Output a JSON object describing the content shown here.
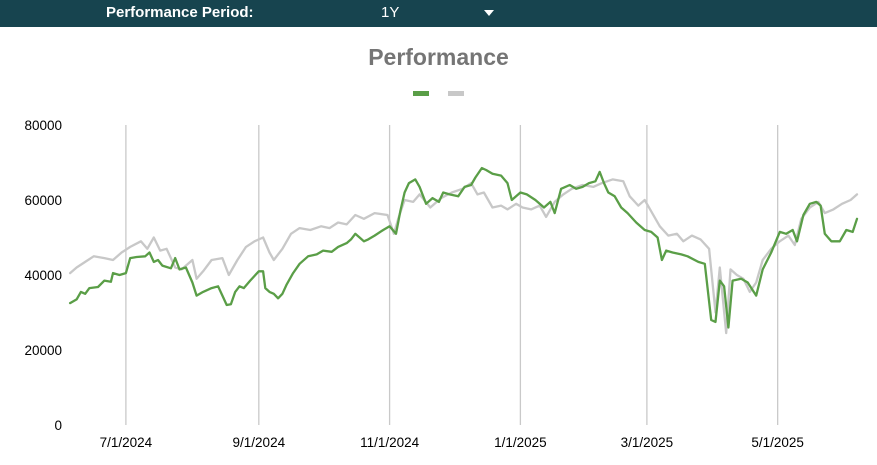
{
  "header": {
    "period_label": "Performance Period:",
    "period_value": "1Y",
    "dropdown_icon": "chevron-down-icon"
  },
  "colors": {
    "header_bg": "#17444f",
    "series_primary": "#5a9e47",
    "series_benchmark": "#c8c8c8",
    "gridline": "#c9c9c9",
    "title": "#757575"
  },
  "chart_data": {
    "type": "line",
    "title": "Performance",
    "xlabel": "",
    "ylabel": "",
    "ylim": [
      0,
      80000
    ],
    "yticks": [
      "0",
      "20000",
      "40000",
      "60000",
      "80000"
    ],
    "xlim": [
      "2024-06-04",
      "2025-06-07"
    ],
    "xticks": [
      "7/1/2024",
      "9/1/2024",
      "11/1/2024",
      "1/1/2025",
      "3/1/2025",
      "5/1/2025"
    ],
    "xtick_dates": [
      "2024-07-01",
      "2024-09-01",
      "2024-11-01",
      "2025-01-01",
      "2025-03-01",
      "2025-05-01"
    ],
    "grid": "vertical",
    "legend": "top-center",
    "series": [
      {
        "color": "#5a9e47",
        "points": [
          [
            "2024-06-05",
            32500
          ],
          [
            "2024-06-08",
            33500
          ],
          [
            "2024-06-10",
            35500
          ],
          [
            "2024-06-12",
            35000
          ],
          [
            "2024-06-14",
            36500
          ],
          [
            "2024-06-18",
            36800
          ],
          [
            "2024-06-21",
            38500
          ],
          [
            "2024-06-24",
            38200
          ],
          [
            "2024-06-25",
            40500
          ],
          [
            "2024-06-28",
            40000
          ],
          [
            "2024-07-01",
            40500
          ],
          [
            "2024-07-03",
            44500
          ],
          [
            "2024-07-06",
            44800
          ],
          [
            "2024-07-10",
            45000
          ],
          [
            "2024-07-12",
            46000
          ],
          [
            "2024-07-14",
            43500
          ],
          [
            "2024-07-16",
            44000
          ],
          [
            "2024-07-18",
            42500
          ],
          [
            "2024-07-22",
            41800
          ],
          [
            "2024-07-24",
            44500
          ],
          [
            "2024-07-26",
            41500
          ],
          [
            "2024-07-29",
            42000
          ],
          [
            "2024-08-01",
            38000
          ],
          [
            "2024-08-03",
            34500
          ],
          [
            "2024-08-06",
            35500
          ],
          [
            "2024-08-10",
            36500
          ],
          [
            "2024-08-13",
            37000
          ],
          [
            "2024-08-15",
            34500
          ],
          [
            "2024-08-17",
            32000
          ],
          [
            "2024-08-19",
            32200
          ],
          [
            "2024-08-21",
            35500
          ],
          [
            "2024-08-23",
            37000
          ],
          [
            "2024-08-25",
            36500
          ],
          [
            "2024-08-28",
            38500
          ],
          [
            "2024-09-01",
            41000
          ],
          [
            "2024-09-03",
            41000
          ],
          [
            "2024-09-04",
            36500
          ],
          [
            "2024-09-06",
            35500
          ],
          [
            "2024-09-08",
            35000
          ],
          [
            "2024-09-10",
            33800
          ],
          [
            "2024-09-12",
            35000
          ],
          [
            "2024-09-14",
            37500
          ],
          [
            "2024-09-17",
            40500
          ],
          [
            "2024-09-20",
            43000
          ],
          [
            "2024-09-24",
            45000
          ],
          [
            "2024-09-28",
            45500
          ],
          [
            "2024-10-01",
            46500
          ],
          [
            "2024-10-05",
            46200
          ],
          [
            "2024-10-08",
            47500
          ],
          [
            "2024-10-12",
            48500
          ],
          [
            "2024-10-14",
            49500
          ],
          [
            "2024-10-16",
            51000
          ],
          [
            "2024-10-18",
            50000
          ],
          [
            "2024-10-20",
            49000
          ],
          [
            "2024-10-22",
            49500
          ],
          [
            "2024-10-25",
            50500
          ],
          [
            "2024-10-29",
            52000
          ],
          [
            "2024-11-01",
            53000
          ],
          [
            "2024-11-04",
            51000
          ],
          [
            "2024-11-06",
            57000
          ],
          [
            "2024-11-08",
            62000
          ],
          [
            "2024-11-10",
            64500
          ],
          [
            "2024-11-13",
            65500
          ],
          [
            "2024-11-15",
            63500
          ],
          [
            "2024-11-18",
            59000
          ],
          [
            "2024-11-21",
            60500
          ],
          [
            "2024-11-24",
            59500
          ],
          [
            "2024-11-26",
            62000
          ],
          [
            "2024-11-29",
            61500
          ],
          [
            "2024-12-03",
            61000
          ],
          [
            "2024-12-06",
            63500
          ],
          [
            "2024-12-09",
            64000
          ],
          [
            "2024-12-11",
            66000
          ],
          [
            "2024-12-14",
            68500
          ],
          [
            "2024-12-16",
            68000
          ],
          [
            "2024-12-19",
            67000
          ],
          [
            "2024-12-23",
            66500
          ],
          [
            "2024-12-26",
            64500
          ],
          [
            "2024-12-28",
            60000
          ],
          [
            "2025-01-01",
            62000
          ],
          [
            "2025-01-04",
            61500
          ],
          [
            "2025-01-08",
            60000
          ],
          [
            "2025-01-12",
            58000
          ],
          [
            "2025-01-15",
            59500
          ],
          [
            "2025-01-17",
            56500
          ],
          [
            "2025-01-20",
            63000
          ],
          [
            "2025-01-24",
            64000
          ],
          [
            "2025-01-27",
            63000
          ],
          [
            "2025-01-30",
            63500
          ],
          [
            "2025-02-02",
            64500
          ],
          [
            "2025-02-05",
            65000
          ],
          [
            "2025-02-07",
            67500
          ],
          [
            "2025-02-09",
            64500
          ],
          [
            "2025-02-11",
            62000
          ],
          [
            "2025-02-14",
            61000
          ],
          [
            "2025-02-17",
            58000
          ],
          [
            "2025-02-20",
            56500
          ],
          [
            "2025-02-24",
            54000
          ],
          [
            "2025-02-28",
            52000
          ],
          [
            "2025-03-03",
            51500
          ],
          [
            "2025-03-06",
            50000
          ],
          [
            "2025-03-08",
            44000
          ],
          [
            "2025-03-10",
            46500
          ],
          [
            "2025-03-13",
            46000
          ],
          [
            "2025-03-17",
            45500
          ],
          [
            "2025-03-20",
            45000
          ],
          [
            "2025-03-25",
            43500
          ],
          [
            "2025-03-28",
            43000
          ],
          [
            "2025-03-31",
            28000
          ],
          [
            "2025-04-02",
            27500
          ],
          [
            "2025-04-04",
            38500
          ],
          [
            "2025-04-06",
            37000
          ],
          [
            "2025-04-08",
            26000
          ],
          [
            "2025-04-10",
            38500
          ],
          [
            "2025-04-14",
            39000
          ],
          [
            "2025-04-17",
            38000
          ],
          [
            "2025-04-21",
            34500
          ],
          [
            "2025-04-24",
            41500
          ],
          [
            "2025-04-28",
            46000
          ],
          [
            "2025-05-02",
            51500
          ],
          [
            "2025-05-05",
            51000
          ],
          [
            "2025-05-08",
            52000
          ],
          [
            "2025-05-10",
            49000
          ],
          [
            "2025-05-13",
            56000
          ],
          [
            "2025-05-16",
            59000
          ],
          [
            "2025-05-19",
            59500
          ],
          [
            "2025-05-21",
            58500
          ],
          [
            "2025-05-23",
            51000
          ],
          [
            "2025-05-26",
            49000
          ],
          [
            "2025-05-30",
            49000
          ],
          [
            "2025-06-02",
            52000
          ],
          [
            "2025-06-05",
            51500
          ],
          [
            "2025-06-07",
            55000
          ]
        ]
      },
      {
        "color": "#c8c8c8",
        "points": [
          [
            "2024-06-05",
            40500
          ],
          [
            "2024-06-08",
            42000
          ],
          [
            "2024-06-12",
            43500
          ],
          [
            "2024-06-16",
            45000
          ],
          [
            "2024-06-21",
            44500
          ],
          [
            "2024-06-25",
            44000
          ],
          [
            "2024-06-29",
            46000
          ],
          [
            "2024-07-03",
            47500
          ],
          [
            "2024-07-08",
            49000
          ],
          [
            "2024-07-11",
            47000
          ],
          [
            "2024-07-14",
            50000
          ],
          [
            "2024-07-17",
            46500
          ],
          [
            "2024-07-20",
            47000
          ],
          [
            "2024-07-24",
            42000
          ],
          [
            "2024-07-27",
            41500
          ],
          [
            "2024-08-01",
            44000
          ],
          [
            "2024-08-03",
            39000
          ],
          [
            "2024-08-06",
            41000
          ],
          [
            "2024-08-10",
            44000
          ],
          [
            "2024-08-15",
            44500
          ],
          [
            "2024-08-18",
            40000
          ],
          [
            "2024-08-22",
            44000
          ],
          [
            "2024-08-26",
            47500
          ],
          [
            "2024-08-30",
            49000
          ],
          [
            "2024-09-03",
            50000
          ],
          [
            "2024-09-06",
            46000
          ],
          [
            "2024-09-08",
            44000
          ],
          [
            "2024-09-12",
            47000
          ],
          [
            "2024-09-16",
            51000
          ],
          [
            "2024-09-20",
            52500
          ],
          [
            "2024-09-25",
            52000
          ],
          [
            "2024-09-30",
            53000
          ],
          [
            "2024-10-04",
            52500
          ],
          [
            "2024-10-08",
            54000
          ],
          [
            "2024-10-12",
            53500
          ],
          [
            "2024-10-16",
            56000
          ],
          [
            "2024-10-20",
            55000
          ],
          [
            "2024-10-25",
            56500
          ],
          [
            "2024-10-31",
            56000
          ],
          [
            "2024-11-03",
            51000
          ],
          [
            "2024-11-05",
            55000
          ],
          [
            "2024-11-08",
            60000
          ],
          [
            "2024-11-12",
            59500
          ],
          [
            "2024-11-15",
            61500
          ],
          [
            "2024-11-20",
            58000
          ],
          [
            "2024-11-25",
            60500
          ],
          [
            "2024-11-30",
            62000
          ],
          [
            "2024-12-05",
            63000
          ],
          [
            "2024-12-09",
            64500
          ],
          [
            "2024-12-12",
            61500
          ],
          [
            "2024-12-15",
            62000
          ],
          [
            "2024-12-19",
            58000
          ],
          [
            "2024-12-23",
            58500
          ],
          [
            "2024-12-26",
            57500
          ],
          [
            "2024-12-30",
            59000
          ],
          [
            "2025-01-02",
            58000
          ],
          [
            "2025-01-06",
            57500
          ],
          [
            "2025-01-10",
            58500
          ],
          [
            "2025-01-13",
            55500
          ],
          [
            "2025-01-17",
            59500
          ],
          [
            "2025-01-21",
            61500
          ],
          [
            "2025-01-25",
            63000
          ],
          [
            "2025-01-30",
            64000
          ],
          [
            "2025-02-04",
            63500
          ],
          [
            "2025-02-08",
            64500
          ],
          [
            "2025-02-13",
            65500
          ],
          [
            "2025-02-18",
            65000
          ],
          [
            "2025-02-21",
            61000
          ],
          [
            "2025-02-25",
            58500
          ],
          [
            "2025-02-28",
            60000
          ],
          [
            "2025-03-03",
            57000
          ],
          [
            "2025-03-07",
            53000
          ],
          [
            "2025-03-11",
            50500
          ],
          [
            "2025-03-15",
            51000
          ],
          [
            "2025-03-18",
            49000
          ],
          [
            "2025-03-22",
            50500
          ],
          [
            "2025-03-26",
            49500
          ],
          [
            "2025-03-30",
            47000
          ],
          [
            "2025-04-02",
            30000
          ],
          [
            "2025-04-04",
            42000
          ],
          [
            "2025-04-07",
            24500
          ],
          [
            "2025-04-09",
            41500
          ],
          [
            "2025-04-12",
            40000
          ],
          [
            "2025-04-15",
            39000
          ],
          [
            "2025-04-18",
            35500
          ],
          [
            "2025-04-21",
            38000
          ],
          [
            "2025-04-24",
            44000
          ],
          [
            "2025-04-28",
            47000
          ],
          [
            "2025-05-02",
            49000
          ],
          [
            "2025-05-06",
            50500
          ],
          [
            "2025-05-09",
            48000
          ],
          [
            "2025-05-12",
            55000
          ],
          [
            "2025-05-16",
            58000
          ],
          [
            "2025-05-20",
            59500
          ],
          [
            "2025-05-23",
            56500
          ],
          [
            "2025-05-27",
            57500
          ],
          [
            "2025-05-31",
            59000
          ],
          [
            "2025-06-04",
            60000
          ],
          [
            "2025-06-07",
            61500
          ]
        ]
      }
    ]
  }
}
